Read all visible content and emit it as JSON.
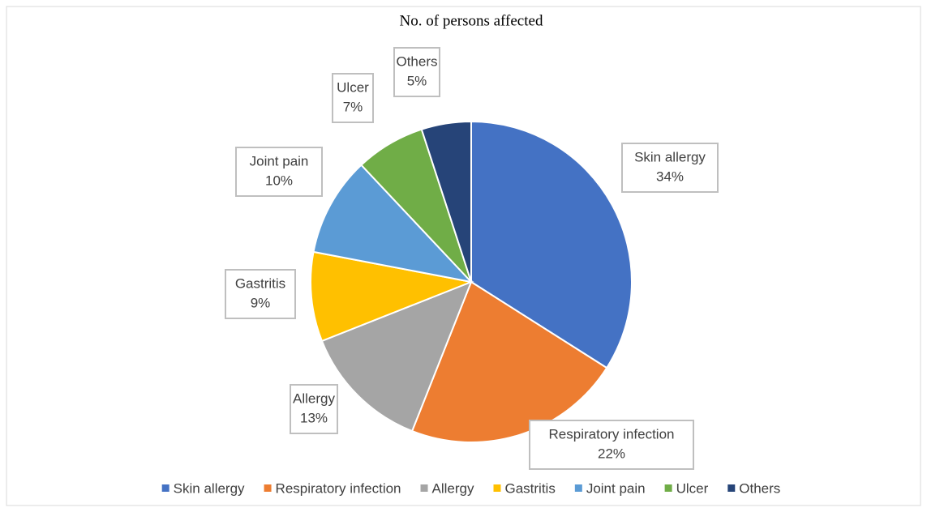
{
  "chart_data": {
    "type": "pie",
    "title": "No. of persons affected",
    "categories": [
      "Skin allergy",
      "Respiratory infection",
      "Allergy",
      "Gastritis",
      "Joint pain",
      "Ulcer",
      "Others"
    ],
    "values": [
      34,
      22,
      13,
      9,
      10,
      7,
      5
    ],
    "value_labels": [
      "34%",
      "22%",
      "13%",
      "9%",
      "10%",
      "7%",
      "5%"
    ],
    "colors": [
      "#4472c4",
      "#ed7d31",
      "#a5a5a5",
      "#ffc000",
      "#5b9bd5",
      "#70ad47",
      "#264478"
    ],
    "legend": "bottom"
  }
}
